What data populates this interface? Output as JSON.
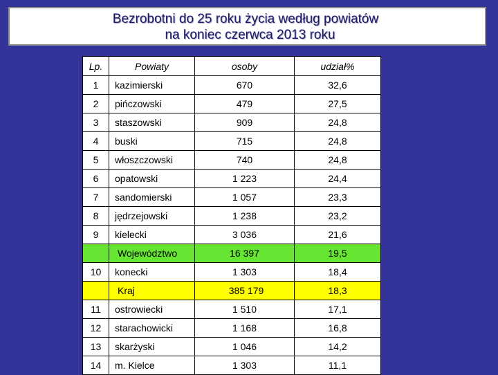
{
  "title": {
    "line1": "Bezrobotni do 25 roku życia według powiatów",
    "line2": "na koniec czerwca 2013 roku"
  },
  "table": {
    "headers": {
      "lp": "Lp.",
      "name": "Powiaty",
      "osoby": "osoby",
      "udzial": "udział%"
    },
    "rows": [
      {
        "lp": "1",
        "name": "kazimierski",
        "osoby": "670",
        "udzial": "32,6"
      },
      {
        "lp": "2",
        "name": "pińczowski",
        "osoby": "479",
        "udzial": "27,5"
      },
      {
        "lp": "3",
        "name": "staszowski",
        "osoby": "909",
        "udzial": "24,8"
      },
      {
        "lp": "4",
        "name": "buski",
        "osoby": "715",
        "udzial": "24,8"
      },
      {
        "lp": "5",
        "name": "włoszczowski",
        "osoby": "740",
        "udzial": "24,8"
      },
      {
        "lp": "6",
        "name": "opatowski",
        "osoby": "1 223",
        "udzial": "24,4"
      },
      {
        "lp": "7",
        "name": "sandomierski",
        "osoby": "1 057",
        "udzial": "23,3"
      },
      {
        "lp": "8",
        "name": "jędrzejowski",
        "osoby": "1 238",
        "udzial": "23,2"
      },
      {
        "lp": "9",
        "name": "kielecki",
        "osoby": "3 036",
        "udzial": "21,6"
      },
      {
        "lp": "",
        "name": "Województwo",
        "osoby": "16 397",
        "udzial": "19,5"
      },
      {
        "lp": "10",
        "name": "konecki",
        "osoby": "1 303",
        "udzial": "18,4"
      },
      {
        "lp": "",
        "name": "Kraj",
        "osoby": "385 179",
        "udzial": "18,3"
      },
      {
        "lp": "11",
        "name": "ostrowiecki",
        "osoby": "1 510",
        "udzial": "17,1"
      },
      {
        "lp": "12",
        "name": "starachowicki",
        "osoby": "1 168",
        "udzial": "16,8"
      },
      {
        "lp": "13",
        "name": "skarżyski",
        "osoby": "1 046",
        "udzial": "14,2"
      },
      {
        "lp": "14",
        "name": "m. Kielce",
        "osoby": "1 303",
        "udzial": "11,1"
      }
    ]
  },
  "colors": {
    "background": "#333399",
    "title_text": "#1a1a66",
    "wojewodztwo_highlight": "#66e633",
    "kraj_highlight": "#ffff00"
  }
}
